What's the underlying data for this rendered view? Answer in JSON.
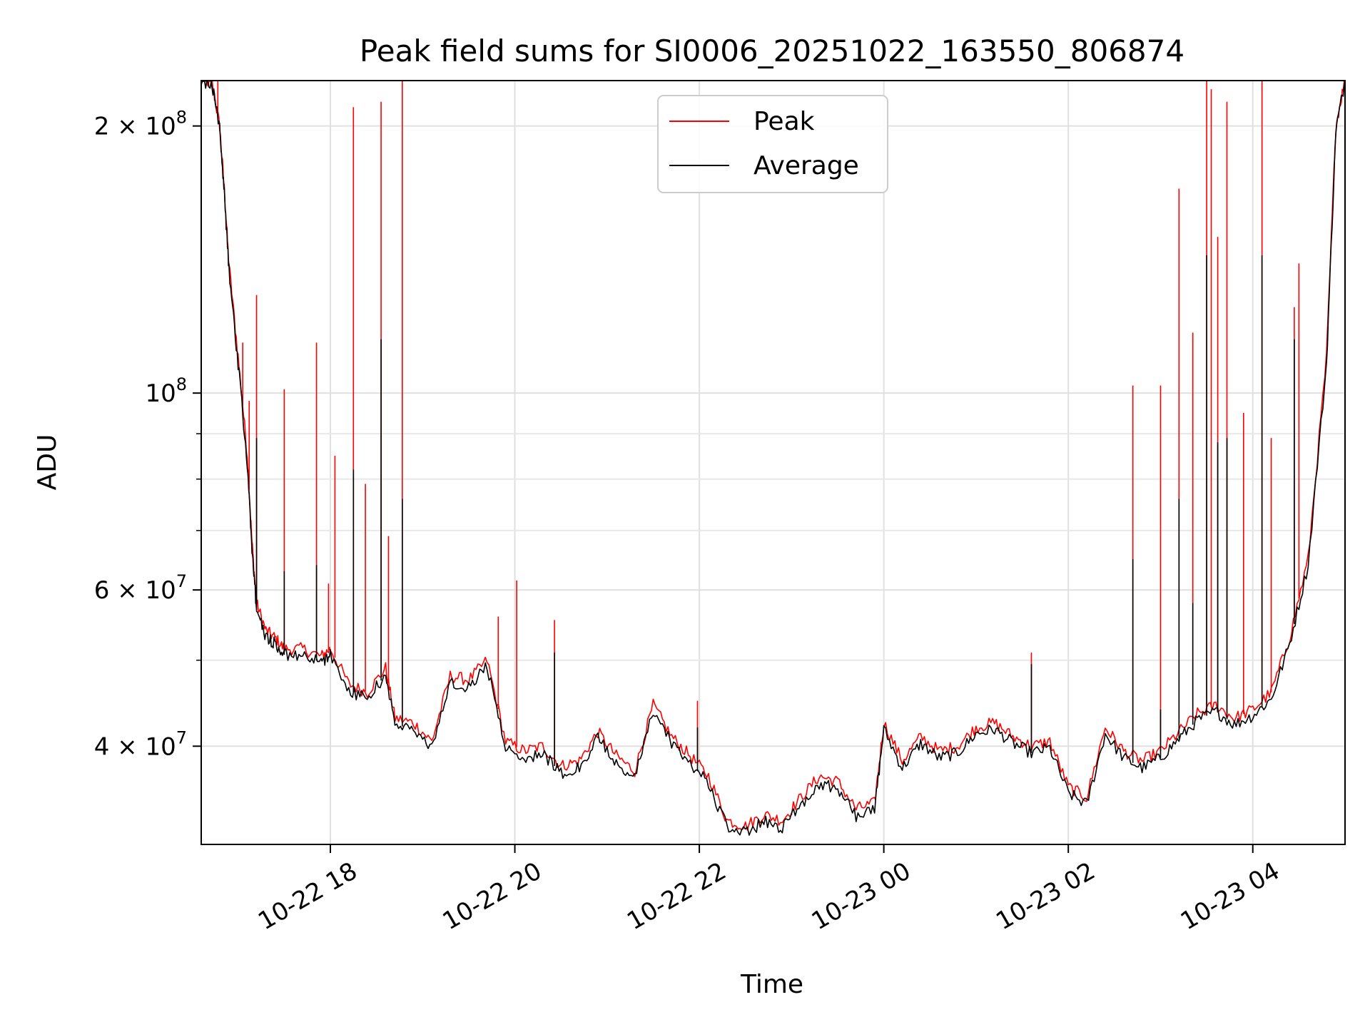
{
  "chart_data": {
    "type": "line",
    "title": "Peak field sums for SI0006_20251022_163550_806874",
    "xlabel": "Time",
    "ylabel": "ADU",
    "yscale": "log",
    "ylim": [
      31000000,
      225000000
    ],
    "xlim": [
      16.6,
      29.0
    ],
    "grid": true,
    "legend_position": "top-center",
    "x_ticks": [
      {
        "value": 18,
        "label": "10-22 18"
      },
      {
        "value": 20,
        "label": "10-22 20"
      },
      {
        "value": 22,
        "label": "10-22 22"
      },
      {
        "value": 24,
        "label": "10-23 00"
      },
      {
        "value": 26,
        "label": "10-23 02"
      },
      {
        "value": 28,
        "label": "10-23 04"
      }
    ],
    "y_ticks": [
      {
        "value": 40000000,
        "mantissa": "4",
        "base": "10",
        "exponent": "7"
      },
      {
        "value": 60000000,
        "mantissa": "6",
        "base": "10",
        "exponent": "7"
      },
      {
        "value": 100000000,
        "mantissa": "",
        "base": "10",
        "exponent": "8"
      },
      {
        "value": 200000000,
        "mantissa": "2",
        "base": "10",
        "exponent": "8"
      }
    ],
    "y_minor_ticks": [
      50000000,
      70000000,
      80000000,
      90000000
    ],
    "series": [
      {
        "name": "Peak",
        "color": "#ff0000",
        "x": [
          16.6,
          16.72,
          16.8,
          16.85,
          16.9,
          17.0,
          17.1,
          17.15,
          17.2,
          17.3,
          17.4,
          17.5,
          17.7,
          17.9,
          18.0,
          18.2,
          18.4,
          18.6,
          18.7,
          18.9,
          19.1,
          19.3,
          19.5,
          19.7,
          19.9,
          20.1,
          20.3,
          20.5,
          20.7,
          20.9,
          21.1,
          21.3,
          21.5,
          21.7,
          21.9,
          22.1,
          22.3,
          22.5,
          22.7,
          22.9,
          23.1,
          23.3,
          23.5,
          23.7,
          23.9,
          24.0,
          24.2,
          24.4,
          24.6,
          24.8,
          25.0,
          25.2,
          25.4,
          25.6,
          25.8,
          26.0,
          26.2,
          26.4,
          26.6,
          26.8,
          27.0,
          27.2,
          27.4,
          27.6,
          27.8,
          28.0,
          28.2,
          28.4,
          28.6,
          28.8,
          28.9,
          29.0
        ],
        "y": [
          226000000,
          223000000,
          200000000,
          170000000,
          140000000,
          110000000,
          85000000,
          68000000,
          58000000,
          54000000,
          53000000,
          51500000,
          51500000,
          50500000,
          51500000,
          47000000,
          46000000,
          49000000,
          43000000,
          42500000,
          40500000,
          48000000,
          47500000,
          50000000,
          40500000,
          39500000,
          40000000,
          38000000,
          38500000,
          41500000,
          39000000,
          37500000,
          44500000,
          41000000,
          39000000,
          37000000,
          33000000,
          32500000,
          33500000,
          33000000,
          35000000,
          37000000,
          36500000,
          34000000,
          34500000,
          42500000,
          38500000,
          41000000,
          39500000,
          40000000,
          42000000,
          42500000,
          41000000,
          40000000,
          40500000,
          36000000,
          35000000,
          42000000,
          39500000,
          38500000,
          39500000,
          41500000,
          43500000,
          44500000,
          43000000,
          44000000,
          46000000,
          53000000,
          65000000,
          110000000,
          200000000,
          226000000
        ],
        "spikes": [
          {
            "x": 16.78,
            "y": 230000000
          },
          {
            "x": 17.05,
            "y": 114000000
          },
          {
            "x": 17.12,
            "y": 98000000
          },
          {
            "x": 17.2,
            "y": 129000000
          },
          {
            "x": 17.5,
            "y": 101000000
          },
          {
            "x": 17.85,
            "y": 114000000
          },
          {
            "x": 17.98,
            "y": 61000000
          },
          {
            "x": 18.05,
            "y": 85000000
          },
          {
            "x": 18.25,
            "y": 210000000
          },
          {
            "x": 18.38,
            "y": 79000000
          },
          {
            "x": 18.55,
            "y": 213000000
          },
          {
            "x": 18.63,
            "y": 69000000
          },
          {
            "x": 18.78,
            "y": 230000000
          },
          {
            "x": 19.82,
            "y": 56000000
          },
          {
            "x": 20.02,
            "y": 61500000
          },
          {
            "x": 20.43,
            "y": 55500000
          },
          {
            "x": 21.98,
            "y": 45000000
          },
          {
            "x": 25.6,
            "y": 51000000
          },
          {
            "x": 26.7,
            "y": 102000000
          },
          {
            "x": 27.0,
            "y": 102000000
          },
          {
            "x": 27.2,
            "y": 170000000
          },
          {
            "x": 27.35,
            "y": 117000000
          },
          {
            "x": 27.5,
            "y": 230000000
          },
          {
            "x": 27.55,
            "y": 220000000
          },
          {
            "x": 27.62,
            "y": 150000000
          },
          {
            "x": 27.72,
            "y": 213000000
          },
          {
            "x": 27.9,
            "y": 95000000
          },
          {
            "x": 28.1,
            "y": 230000000
          },
          {
            "x": 28.2,
            "y": 89000000
          },
          {
            "x": 28.45,
            "y": 125000000
          },
          {
            "x": 28.5,
            "y": 140000000
          }
        ]
      },
      {
        "name": "Average",
        "color": "#000000",
        "x": [
          16.6,
          16.72,
          16.8,
          16.85,
          16.9,
          17.0,
          17.1,
          17.15,
          17.2,
          17.3,
          17.4,
          17.5,
          17.7,
          17.9,
          18.0,
          18.2,
          18.4,
          18.6,
          18.7,
          18.9,
          19.1,
          19.3,
          19.5,
          19.7,
          19.9,
          20.1,
          20.3,
          20.5,
          20.7,
          20.9,
          21.1,
          21.3,
          21.5,
          21.7,
          21.9,
          22.1,
          22.3,
          22.5,
          22.7,
          22.9,
          23.1,
          23.3,
          23.5,
          23.7,
          23.9,
          24.0,
          24.2,
          24.4,
          24.6,
          24.8,
          25.0,
          25.2,
          25.4,
          25.6,
          25.8,
          26.0,
          26.2,
          26.4,
          26.6,
          26.8,
          27.0,
          27.2,
          27.4,
          27.6,
          27.8,
          28.0,
          28.2,
          28.4,
          28.6,
          28.8,
          28.9,
          29.0
        ],
        "y": [
          225000000,
          222000000,
          198000000,
          168000000,
          138000000,
          108000000,
          83000000,
          67000000,
          57000000,
          53200000,
          52200000,
          50700000,
          50700000,
          49700000,
          50700000,
          46200000,
          45200000,
          48200000,
          42300000,
          41800000,
          39800000,
          47200000,
          46700000,
          49200000,
          39800000,
          38800000,
          39300000,
          37300000,
          37800000,
          40800000,
          38300000,
          36800000,
          43800000,
          40300000,
          38300000,
          36300000,
          32400000,
          31900000,
          32900000,
          32400000,
          34400000,
          36300000,
          35800000,
          33400000,
          33900000,
          41800000,
          37800000,
          40300000,
          38800000,
          39300000,
          41300000,
          41800000,
          40300000,
          39300000,
          39800000,
          35400000,
          34400000,
          41300000,
          38800000,
          37800000,
          38800000,
          40800000,
          42800000,
          43800000,
          42300000,
          43300000,
          45200000,
          52200000,
          64000000,
          108000000,
          198000000,
          225000000
        ],
        "spikes": [
          {
            "x": 16.78,
            "y": 205000000
          },
          {
            "x": 17.2,
            "y": 89000000
          },
          {
            "x": 17.5,
            "y": 63000000
          },
          {
            "x": 17.85,
            "y": 64000000
          },
          {
            "x": 18.25,
            "y": 82000000
          },
          {
            "x": 18.55,
            "y": 115000000
          },
          {
            "x": 18.78,
            "y": 76000000
          },
          {
            "x": 20.43,
            "y": 51000000
          },
          {
            "x": 21.98,
            "y": 42000000
          },
          {
            "x": 25.6,
            "y": 49500000
          },
          {
            "x": 26.7,
            "y": 65000000
          },
          {
            "x": 27.0,
            "y": 44000000
          },
          {
            "x": 27.2,
            "y": 76000000
          },
          {
            "x": 27.35,
            "y": 58000000
          },
          {
            "x": 27.5,
            "y": 143000000
          },
          {
            "x": 27.62,
            "y": 88000000
          },
          {
            "x": 27.72,
            "y": 89000000
          },
          {
            "x": 28.1,
            "y": 143000000
          },
          {
            "x": 28.45,
            "y": 115000000
          }
        ]
      }
    ]
  }
}
